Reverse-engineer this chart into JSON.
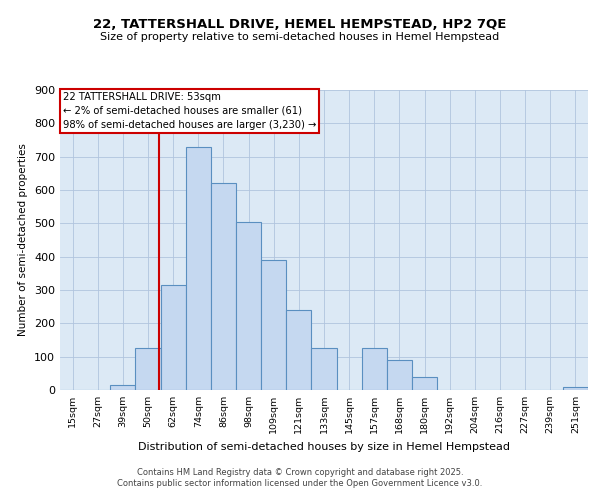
{
  "title1": "22, TATTERSHALL DRIVE, HEMEL HEMPSTEAD, HP2 7QE",
  "title2": "Size of property relative to semi-detached houses in Hemel Hempstead",
  "xlabel": "Distribution of semi-detached houses by size in Hemel Hempstead",
  "ylabel": "Number of semi-detached properties",
  "categories": [
    "15sqm",
    "27sqm",
    "39sqm",
    "50sqm",
    "62sqm",
    "74sqm",
    "86sqm",
    "98sqm",
    "109sqm",
    "121sqm",
    "133sqm",
    "145sqm",
    "157sqm",
    "168sqm",
    "180sqm",
    "192sqm",
    "204sqm",
    "216sqm",
    "227sqm",
    "239sqm",
    "251sqm"
  ],
  "values": [
    0,
    0,
    15,
    125,
    315,
    730,
    620,
    505,
    390,
    240,
    125,
    0,
    125,
    90,
    40,
    0,
    0,
    0,
    0,
    0,
    10
  ],
  "bar_color": "#c5d8f0",
  "bar_edge_color": "#5a8fc0",
  "vline_color": "#cc0000",
  "vline_pos": 3.45,
  "annotation_title": "22 TATTERSHALL DRIVE: 53sqm",
  "annotation_line1": "← 2% of semi-detached houses are smaller (61)",
  "annotation_line2": "98% of semi-detached houses are larger (3,230) →",
  "ylim": [
    0,
    900
  ],
  "yticks": [
    0,
    100,
    200,
    300,
    400,
    500,
    600,
    700,
    800,
    900
  ],
  "background_color": "#dce9f5",
  "footer1": "Contains HM Land Registry data © Crown copyright and database right 2025.",
  "footer2": "Contains public sector information licensed under the Open Government Licence v3.0."
}
